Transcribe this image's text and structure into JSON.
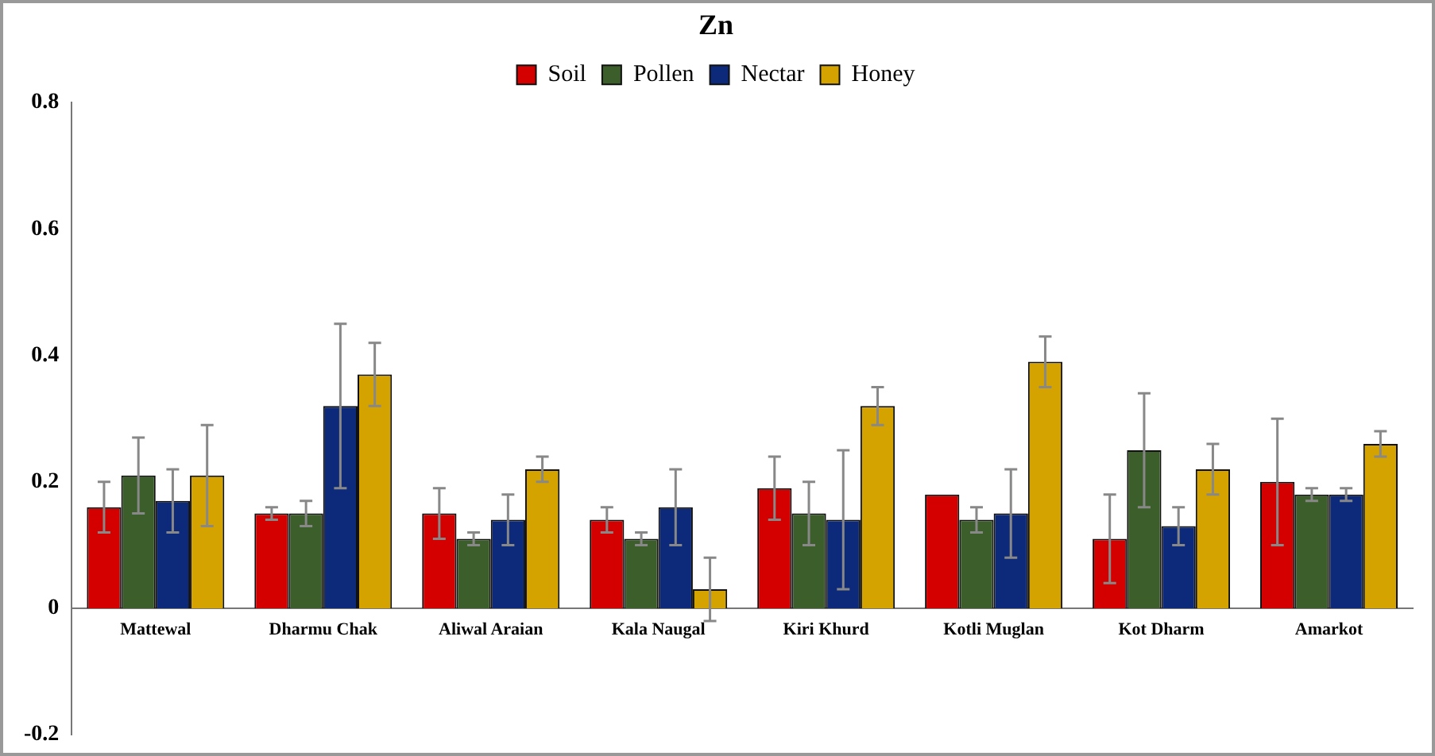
{
  "chart_data": {
    "type": "bar",
    "title": "Zn",
    "categories": [
      "Mattewal",
      "Dharmu Chak",
      "Aliwal Araian",
      "Kala Naugal",
      "Kiri Khurd",
      "Kotli Muglan",
      "Kot Dharm",
      "Amarkot"
    ],
    "series": [
      {
        "name": "Soil",
        "color": "#d40000",
        "values": [
          0.16,
          0.15,
          0.15,
          0.14,
          0.19,
          0.18,
          0.11,
          0.2
        ],
        "errors": [
          0.04,
          0.01,
          0.04,
          0.02,
          0.05,
          null,
          0.07,
          0.1
        ]
      },
      {
        "name": "Pollen",
        "color": "#3b5e2b",
        "values": [
          0.21,
          0.15,
          0.11,
          0.11,
          0.15,
          0.14,
          0.25,
          0.18
        ],
        "errors": [
          0.06,
          0.02,
          0.01,
          0.01,
          0.05,
          0.02,
          0.09,
          0.01
        ]
      },
      {
        "name": "Nectar",
        "color": "#0d2a7a",
        "values": [
          0.17,
          0.32,
          0.14,
          0.16,
          0.14,
          0.15,
          0.13,
          0.18
        ],
        "errors": [
          0.05,
          0.13,
          0.04,
          0.06,
          0.11,
          0.07,
          0.03,
          0.01
        ]
      },
      {
        "name": "Honey",
        "color": "#d4a300",
        "values": [
          0.21,
          0.37,
          0.22,
          0.03,
          0.32,
          0.39,
          0.22,
          0.26
        ],
        "errors": [
          0.08,
          0.05,
          0.02,
          0.05,
          0.03,
          0.04,
          0.04,
          0.02
        ]
      }
    ],
    "ylim": [
      -0.2,
      0.8
    ],
    "yticks": [
      -0.2,
      0,
      0.2,
      0.4,
      0.6,
      0.8
    ],
    "grid": false,
    "legend": "top"
  }
}
